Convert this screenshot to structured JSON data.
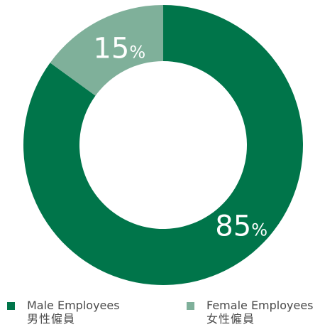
{
  "chart_data": {
    "type": "pie",
    "title": "",
    "slices": [
      {
        "label": "Male Employees",
        "label_zh": "男性僱員",
        "value": 85,
        "display": "85",
        "unit": "%",
        "color": "#00754a"
      },
      {
        "label": "Female Employees",
        "label_zh": "女性僱員",
        "value": 15,
        "display": "15",
        "unit": "%",
        "color": "#7fb09a"
      }
    ],
    "donut": true,
    "start_angle": "12 o'clock",
    "direction": "clockwise",
    "legend_position": "bottom"
  },
  "legend": {
    "male_en": "Male Employees",
    "male_zh": "男性僱員",
    "female_en": "Female Employees",
    "female_zh": "女性僱員"
  }
}
